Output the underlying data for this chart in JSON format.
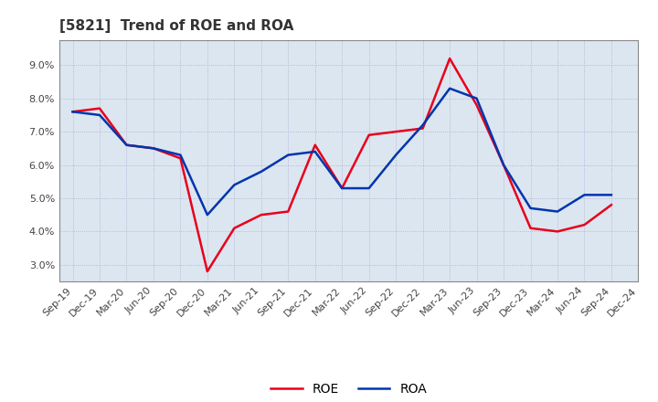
{
  "title": "[5821]  Trend of ROE and ROA",
  "x_labels": [
    "Sep-19",
    "Dec-19",
    "Mar-20",
    "Jun-20",
    "Sep-20",
    "Dec-20",
    "Mar-21",
    "Jun-21",
    "Sep-21",
    "Dec-21",
    "Mar-22",
    "Jun-22",
    "Sep-22",
    "Dec-22",
    "Mar-23",
    "Jun-23",
    "Sep-23",
    "Dec-23",
    "Mar-24",
    "Jun-24",
    "Sep-24",
    "Dec-24"
  ],
  "ROE": [
    7.6,
    7.7,
    6.6,
    6.5,
    6.2,
    2.8,
    4.1,
    4.5,
    4.6,
    6.6,
    5.3,
    6.9,
    7.0,
    7.1,
    9.2,
    7.8,
    6.0,
    4.1,
    4.0,
    4.2,
    4.8,
    null
  ],
  "ROA": [
    7.6,
    7.5,
    6.6,
    6.5,
    6.3,
    4.5,
    5.4,
    5.8,
    6.3,
    6.4,
    5.3,
    5.3,
    6.3,
    7.2,
    8.3,
    8.0,
    6.0,
    4.7,
    4.6,
    5.1,
    5.1,
    null
  ],
  "roe_color": "#e8001c",
  "roa_color": "#0035ad",
  "ylim": [
    2.5,
    9.75
  ],
  "yticks": [
    3.0,
    4.0,
    5.0,
    6.0,
    7.0,
    8.0,
    9.0
  ],
  "bg_color": "#ffffff",
  "plot_bg_color": "#dce6f0",
  "grid_color": "#aaaacc",
  "title_fontsize": 11,
  "tick_fontsize": 8,
  "legend_fontsize": 10,
  "line_width": 1.8
}
